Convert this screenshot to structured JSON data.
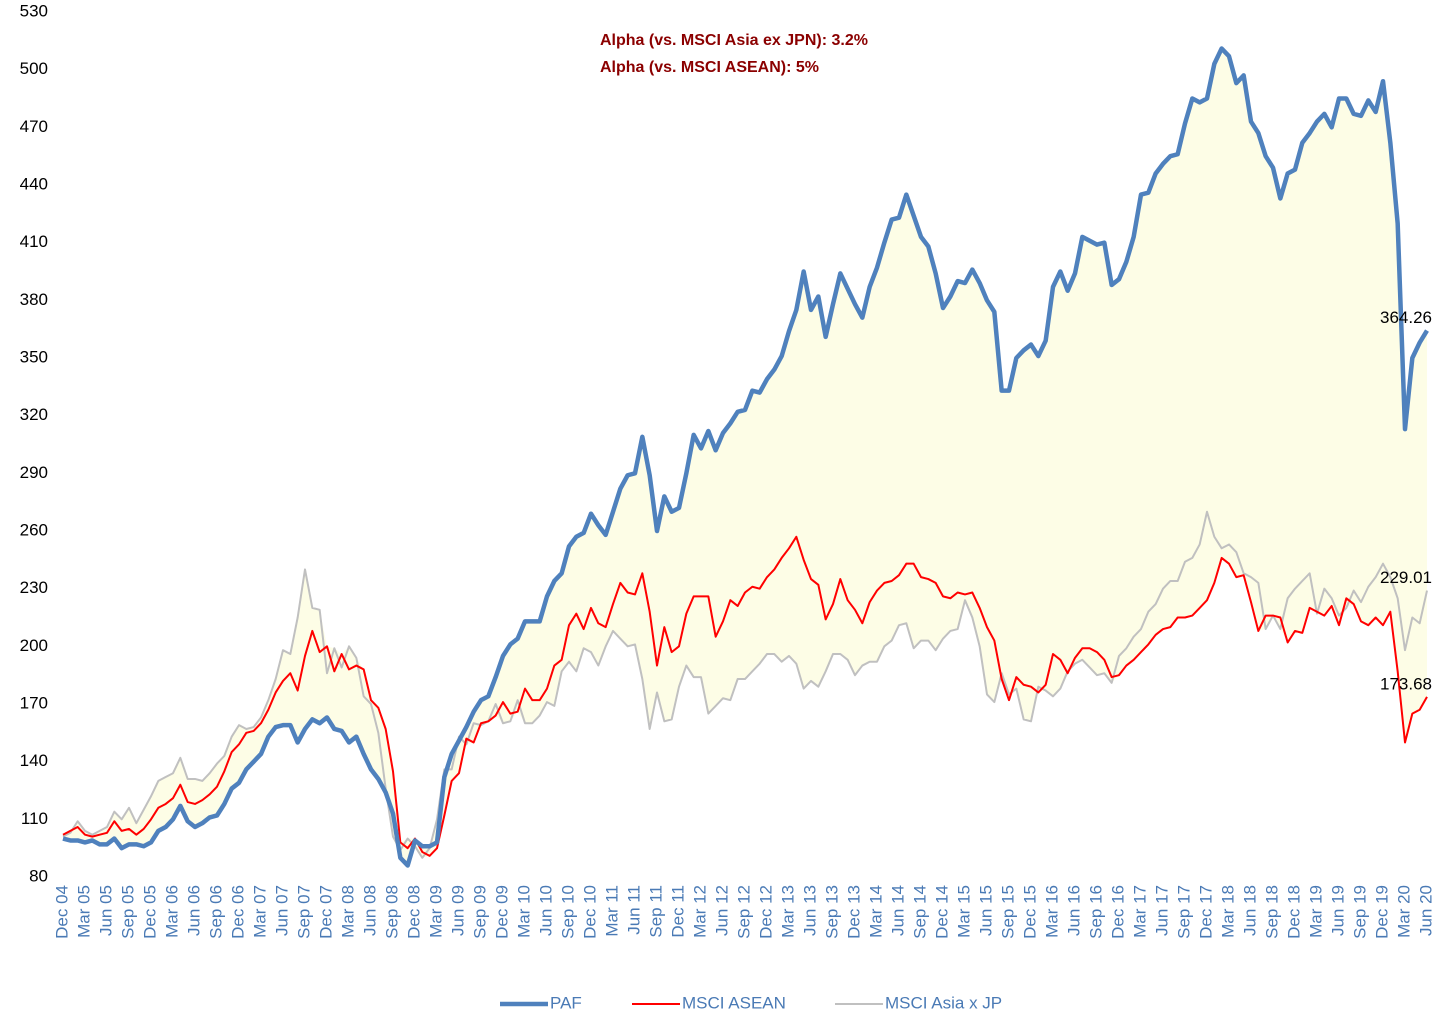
{
  "chart_data": {
    "type": "line",
    "annotations": [
      "Alpha (vs. MSCI Asia ex JPN): 3.2%",
      "Alpha (vs. MSCI ASEAN): 5%"
    ],
    "categories": [
      "Dec 04",
      null,
      null,
      "Mar 05",
      null,
      null,
      "Jun 05",
      null,
      null,
      "Sep 05",
      null,
      null,
      "Dec 05",
      null,
      null,
      "Mar 06",
      null,
      null,
      "Jun 06",
      null,
      null,
      "Sep 06",
      null,
      null,
      "Dec 06",
      null,
      null,
      "Mar 07",
      null,
      null,
      "Jun 07",
      null,
      null,
      "Sep 07",
      null,
      null,
      "Dec 07",
      null,
      null,
      "Mar 08",
      null,
      null,
      "Jun 08",
      null,
      null,
      "Sep 08",
      null,
      null,
      "Dec 08",
      null,
      null,
      "Mar 09",
      null,
      null,
      "Jun 09",
      null,
      null,
      "Sep 09",
      null,
      null,
      "Dec 09",
      null,
      null,
      "Mar 10",
      null,
      null,
      "Jun 10",
      null,
      null,
      "Sep 10",
      null,
      null,
      "Dec 10",
      null,
      null,
      "Mar 11",
      null,
      null,
      "Jun 11",
      null,
      null,
      "Sep 11",
      null,
      null,
      "Dec 11",
      null,
      null,
      "Mar 12",
      null,
      null,
      "Jun 12",
      null,
      null,
      "Sep 12",
      null,
      null,
      "Dec 12",
      null,
      null,
      "Mar 13",
      null,
      null,
      "Jun 13",
      null,
      null,
      "Sep 13",
      null,
      null,
      "Dec 13",
      null,
      null,
      "Mar 14",
      null,
      null,
      "Jun 14",
      null,
      null,
      "Sep 14",
      null,
      null,
      "Dec 14",
      null,
      null,
      "Mar 15",
      null,
      null,
      "Jun 15",
      null,
      null,
      "Sep 15",
      null,
      null,
      "Dec 15",
      null,
      null,
      "Mar 16",
      null,
      null,
      "Jun 16",
      null,
      null,
      "Sep 16",
      null,
      null,
      "Dec 16",
      null,
      null,
      "Mar 17",
      null,
      null,
      "Jun 17",
      null,
      null,
      "Sep 17",
      null,
      null,
      "Dec 17",
      null,
      null,
      "Mar 18",
      null,
      null,
      "Jun 18",
      null,
      null,
      "Sep 18",
      null,
      null,
      "Dec 18",
      null,
      null,
      "Mar 19",
      null,
      null,
      "Jun 19",
      null,
      null,
      "Sep 19",
      null,
      null,
      "Dec 19",
      null,
      null,
      "Mar 20",
      null,
      null,
      "Jun 20"
    ],
    "series": [
      {
        "name": "PAF",
        "color": "#4f81bd",
        "values": [
          100,
          99,
          99,
          98,
          99,
          97,
          97,
          100,
          95,
          97,
          97,
          96,
          98,
          104,
          106,
          110,
          117,
          109,
          106,
          108,
          111,
          112,
          118,
          126,
          129,
          136,
          140,
          144,
          153,
          158,
          159,
          159,
          150,
          157,
          162,
          160,
          163,
          157,
          156,
          150,
          153,
          144,
          136,
          131,
          124,
          113,
          90,
          86,
          99,
          96,
          96,
          98,
          132,
          144,
          151,
          158,
          166,
          172,
          174,
          184,
          195,
          201,
          204,
          213,
          213,
          213,
          226,
          234,
          238,
          252,
          257,
          259,
          269,
          263,
          258,
          270,
          282,
          289,
          290,
          309,
          289,
          260,
          278,
          270,
          272,
          290,
          310,
          303,
          312,
          302,
          311,
          316,
          322,
          323,
          333,
          332,
          339,
          344,
          351,
          364,
          375,
          395,
          375,
          382,
          361,
          378,
          394,
          386,
          378,
          371,
          387,
          397,
          410,
          422,
          423,
          435,
          424,
          413,
          408,
          394,
          376,
          382,
          390,
          389,
          396,
          389,
          380,
          374,
          333,
          333,
          350,
          354,
          357,
          351,
          359,
          387,
          395,
          385,
          394,
          413,
          411,
          409,
          410,
          388,
          391,
          400,
          413,
          435,
          436,
          446,
          451,
          455,
          456,
          472,
          485,
          483,
          485,
          503,
          511,
          507,
          493,
          497,
          473,
          467,
          455,
          449,
          433,
          446,
          448,
          462,
          467,
          473,
          477,
          470,
          485,
          485,
          477,
          476,
          484,
          478,
          494,
          462,
          420,
          313,
          350,
          358,
          364.26
        ]
      },
      {
        "name": "MSCI ASEAN",
        "color": "#ff0000",
        "values": [
          102,
          104,
          106,
          102,
          101,
          102,
          103,
          109,
          104,
          105,
          102,
          105,
          110,
          116,
          118,
          121,
          128,
          119,
          118,
          120,
          123,
          127,
          135,
          145,
          149,
          155,
          156,
          160,
          167,
          176,
          182,
          186,
          177,
          195,
          208,
          197,
          200,
          187,
          196,
          188,
          190,
          188,
          172,
          168,
          157,
          135,
          98,
          95,
          100,
          93,
          91,
          95,
          112,
          130,
          134,
          152,
          150,
          160,
          161,
          164,
          171,
          165,
          166,
          178,
          172,
          172,
          178,
          190,
          193,
          211,
          217,
          209,
          220,
          212,
          210,
          222,
          233,
          228,
          227,
          238,
          218,
          190,
          210,
          197,
          200,
          217,
          226,
          226,
          226,
          205,
          213,
          224,
          221,
          228,
          231,
          230,
          236,
          240,
          246,
          251,
          257,
          245,
          235,
          232,
          214,
          222,
          235,
          224,
          219,
          212,
          223,
          229,
          233,
          234,
          237,
          243,
          243,
          236,
          235,
          233,
          226,
          225,
          228,
          227,
          228,
          220,
          210,
          203,
          183,
          172,
          184,
          180,
          179,
          176,
          180,
          196,
          193,
          186,
          194,
          199,
          199,
          197,
          193,
          184,
          185,
          190,
          193,
          197,
          201,
          206,
          209,
          210,
          215,
          215,
          216,
          220,
          224,
          233,
          246,
          243,
          236,
          237,
          223,
          208,
          216,
          216,
          215,
          202,
          208,
          207,
          220,
          218,
          216,
          221,
          211,
          225,
          222,
          213,
          211,
          215,
          211,
          218,
          187,
          150,
          165,
          167,
          173.68
        ]
      },
      {
        "name": "MSCI Asia x JP",
        "color": "#c0c0c0",
        "values": [
          101,
          103,
          109,
          104,
          102,
          104,
          106,
          114,
          110,
          116,
          108,
          115,
          122,
          130,
          132,
          134,
          142,
          131,
          131,
          130,
          134,
          139,
          143,
          153,
          159,
          157,
          158,
          163,
          172,
          183,
          198,
          196,
          215,
          240,
          220,
          219,
          186,
          199,
          189,
          200,
          194,
          174,
          170,
          155,
          126,
          101,
          94,
          100,
          96,
          90,
          95,
          110,
          136,
          136,
          153,
          149,
          160,
          159,
          161,
          170,
          160,
          161,
          172,
          160,
          160,
          164,
          171,
          169,
          187,
          192,
          187,
          199,
          197,
          190,
          200,
          208,
          204,
          200,
          201,
          183,
          157,
          176,
          161,
          162,
          179,
          190,
          184,
          184,
          165,
          169,
          173,
          172,
          183,
          183,
          187,
          191,
          196,
          196,
          192,
          195,
          191,
          178,
          182,
          179,
          187,
          196,
          196,
          193,
          185,
          190,
          192,
          192,
          200,
          203,
          211,
          212,
          199,
          203,
          203,
          198,
          204,
          208,
          209,
          224,
          215,
          200,
          175,
          171,
          186,
          175,
          178,
          162,
          161,
          179,
          177,
          174,
          178,
          187,
          191,
          193,
          189,
          185,
          186,
          181,
          195,
          199,
          205,
          209,
          218,
          222,
          230,
          234,
          234,
          244,
          246,
          253,
          270,
          257,
          251,
          253,
          249,
          238,
          236,
          233,
          209,
          216,
          209,
          225,
          230,
          234,
          238,
          217,
          230,
          225,
          216,
          220,
          229,
          223,
          231,
          236,
          243,
          236,
          225,
          198,
          215,
          212,
          229.01
        ]
      }
    ],
    "ylim": [
      80,
      530
    ],
    "yticks": [
      80,
      110,
      140,
      170,
      200,
      230,
      260,
      290,
      320,
      350,
      380,
      410,
      440,
      470,
      500,
      530
    ],
    "grid": false,
    "fill_between": "#fdfde6",
    "legend": "bottom"
  }
}
